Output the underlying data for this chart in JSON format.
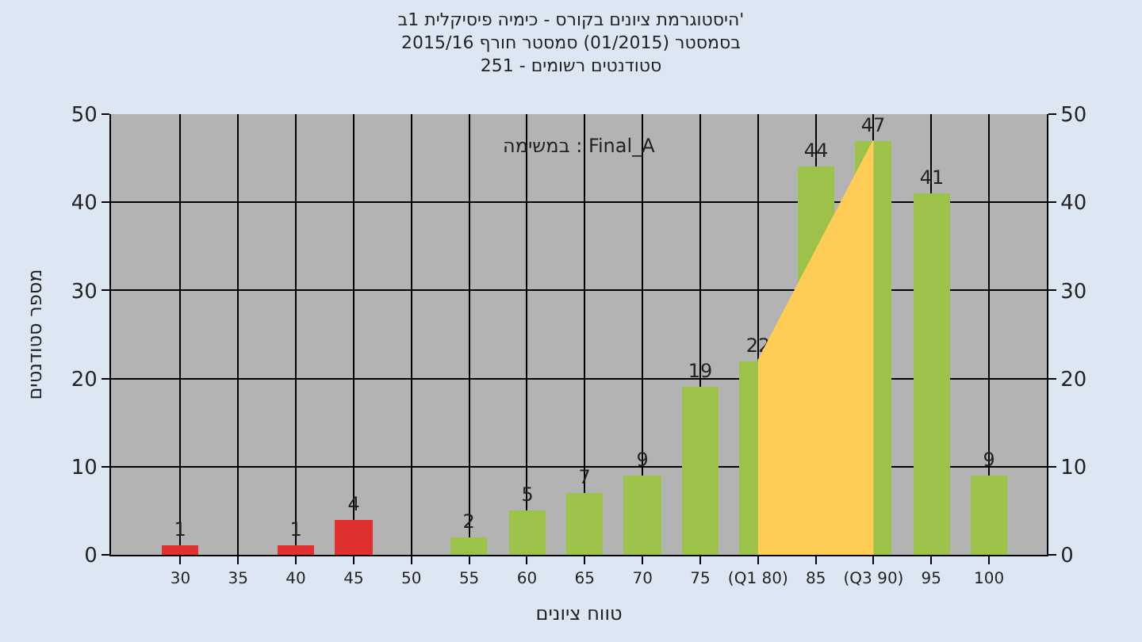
{
  "chart_data": {
    "type": "bar",
    "title": "היסטוגרמת ציונים בקורס - כימיה פיסיקלית 1ב'",
    "subtitle": "בסמסטר (01/2015) סמסטר חורף 2015/16\nסטודנטים רשומים - 251",
    "xlabel": "טווח ציונים",
    "ylabel": "מספר סטודנטים",
    "annotations": [
      "במשימה : Final_A"
    ],
    "x": [
      30,
      35,
      40,
      45,
      50,
      55,
      60,
      65,
      70,
      75,
      80,
      85,
      90,
      95,
      100
    ],
    "series": [
      {
        "type": "area",
        "x": [
          80,
          90
        ],
        "values": [
          22,
          47
        ],
        "color": "#ffcc55"
      },
      {
        "values": [
          1,
          0,
          1,
          4,
          0,
          2,
          5,
          7,
          9,
          19,
          22,
          44,
          47,
          41,
          9
        ],
        "value_labels": [
          "1",
          null,
          "1",
          "4",
          null,
          "2",
          "5",
          "7",
          "9",
          "19",
          "22",
          "44",
          "47",
          "41",
          "9"
        ],
        "colors": [
          "#e03030",
          "#e03030",
          "#e03030",
          "#e03030",
          "#e03030",
          "#9cc24a",
          "#9cc24a",
          "#9cc24a",
          "#9cc24a",
          "#9cc24a",
          "#9cc24a",
          "#9cc24a",
          "#9cc24a",
          "#9cc24a",
          "#9cc24a"
        ]
      }
    ],
    "xlim": [
      24,
      105
    ],
    "xticks": [
      30,
      35,
      40,
      45,
      50,
      55,
      60,
      65,
      70,
      75,
      {
        "value": 80,
        "label": "(Q1 80)"
      },
      85,
      {
        "value": 90,
        "label": "(Q3 90)"
      },
      95,
      100
    ],
    "ylim": [
      0,
      50
    ],
    "yticks": [
      0,
      10,
      20,
      30,
      40,
      50
    ],
    "y2lim": [
      0,
      50
    ],
    "y2ticks": [
      0,
      10,
      20,
      30,
      40,
      50
    ],
    "grid": true
  }
}
